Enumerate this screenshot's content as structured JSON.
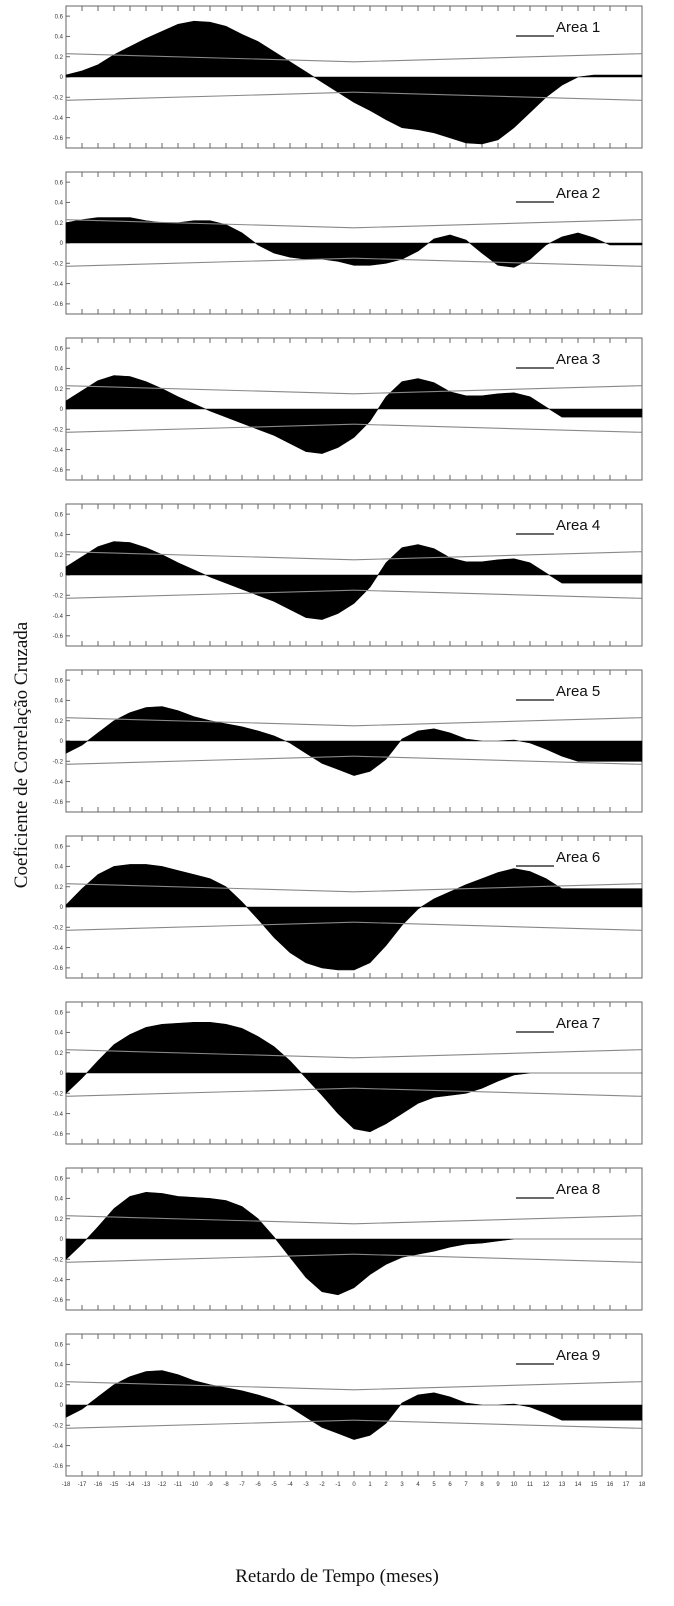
{
  "figure": {
    "ylabel": "Coeficiente de Correlação Cruzada",
    "xlabel": "Retardo de Tempo (meses)"
  },
  "chart_data": {
    "type": "area",
    "xlim": [
      -18,
      18
    ],
    "ylim": [
      -0.7,
      0.7
    ],
    "yticks": [
      0.6,
      0.4,
      0.2,
      0,
      -0.2,
      -0.4,
      -0.6
    ],
    "ytick_labels": [
      "0.6",
      "0.4",
      "0.2",
      "0",
      "-0.2",
      "-0.4",
      "-0.6"
    ],
    "xticks": [
      -18,
      -17,
      -16,
      -15,
      -14,
      -13,
      -12,
      -11,
      -10,
      -9,
      -8,
      -7,
      -6,
      -5,
      -4,
      -3,
      -2,
      -1,
      0,
      1,
      2,
      3,
      4,
      5,
      6,
      7,
      8,
      9,
      10,
      11,
      12,
      13,
      14,
      15,
      16,
      17,
      18
    ],
    "confidence_band": {
      "upper": [
        0.23,
        0.15
      ],
      "lower": [
        -0.23,
        -0.15
      ],
      "color": "#888888"
    },
    "fill_color": "#000000",
    "panels": [
      {
        "name": "Area 1",
        "y": [
          0.02,
          0.06,
          0.12,
          0.22,
          0.3,
          0.38,
          0.45,
          0.52,
          0.55,
          0.54,
          0.5,
          0.42,
          0.35,
          0.25,
          0.15,
          0.05,
          -0.05,
          -0.15,
          -0.25,
          -0.33,
          -0.42,
          -0.5,
          -0.52,
          -0.55,
          -0.6,
          -0.65,
          -0.66,
          -0.62,
          -0.5,
          -0.35,
          -0.2,
          -0.08,
          0.0,
          0.02,
          0.02,
          0.02,
          0.02
        ]
      },
      {
        "name": "Area 2",
        "y": [
          0.2,
          0.23,
          0.25,
          0.25,
          0.25,
          0.22,
          0.2,
          0.2,
          0.22,
          0.22,
          0.18,
          0.1,
          -0.02,
          -0.1,
          -0.14,
          -0.16,
          -0.16,
          -0.18,
          -0.22,
          -0.22,
          -0.2,
          -0.16,
          -0.08,
          0.04,
          0.08,
          0.03,
          -0.1,
          -0.22,
          -0.24,
          -0.16,
          -0.02,
          0.06,
          0.1,
          0.05,
          -0.02,
          -0.02,
          -0.02
        ]
      },
      {
        "name": "Area 3",
        "y": [
          0.08,
          0.18,
          0.28,
          0.33,
          0.32,
          0.27,
          0.2,
          0.12,
          0.05,
          -0.02,
          -0.08,
          -0.14,
          -0.2,
          -0.26,
          -0.34,
          -0.42,
          -0.44,
          -0.38,
          -0.28,
          -0.12,
          0.12,
          0.27,
          0.3,
          0.26,
          0.17,
          0.13,
          0.13,
          0.15,
          0.16,
          0.12,
          0.02,
          -0.08,
          -0.08,
          -0.08,
          -0.08,
          -0.08,
          -0.08
        ]
      },
      {
        "name": "Area 4",
        "y": [
          0.08,
          0.18,
          0.28,
          0.33,
          0.32,
          0.27,
          0.2,
          0.12,
          0.05,
          -0.02,
          -0.08,
          -0.14,
          -0.2,
          -0.26,
          -0.34,
          -0.42,
          -0.44,
          -0.38,
          -0.28,
          -0.12,
          0.12,
          0.27,
          0.3,
          0.26,
          0.17,
          0.13,
          0.13,
          0.15,
          0.16,
          0.12,
          0.02,
          -0.08,
          -0.08,
          -0.08,
          -0.08,
          -0.08,
          -0.08
        ]
      },
      {
        "name": "Area 5",
        "y": [
          -0.12,
          -0.04,
          0.08,
          0.2,
          0.28,
          0.33,
          0.34,
          0.3,
          0.24,
          0.2,
          0.17,
          0.14,
          0.1,
          0.05,
          -0.02,
          -0.12,
          -0.22,
          -0.28,
          -0.34,
          -0.3,
          -0.18,
          0.02,
          0.1,
          0.12,
          0.08,
          0.02,
          0.0,
          0.0,
          0.01,
          -0.02,
          -0.08,
          -0.15,
          -0.2,
          -0.2,
          -0.2,
          -0.2,
          -0.2
        ]
      },
      {
        "name": "Area 6",
        "y": [
          0.02,
          0.18,
          0.32,
          0.4,
          0.42,
          0.42,
          0.4,
          0.36,
          0.32,
          0.28,
          0.2,
          0.05,
          -0.12,
          -0.3,
          -0.45,
          -0.55,
          -0.6,
          -0.62,
          -0.62,
          -0.55,
          -0.38,
          -0.18,
          -0.02,
          0.08,
          0.15,
          0.22,
          0.28,
          0.34,
          0.38,
          0.35,
          0.28,
          0.18,
          0.18,
          0.18,
          0.18,
          0.18,
          0.18
        ]
      },
      {
        "name": "Area 7",
        "y": [
          -0.2,
          -0.05,
          0.12,
          0.28,
          0.38,
          0.45,
          0.48,
          0.49,
          0.5,
          0.5,
          0.48,
          0.44,
          0.36,
          0.26,
          0.12,
          -0.05,
          -0.22,
          -0.4,
          -0.55,
          -0.58,
          -0.5,
          -0.4,
          -0.3,
          -0.24,
          -0.22,
          -0.2,
          -0.15,
          -0.08,
          -0.02,
          0.0,
          0.0,
          0.0,
          0.0,
          0.0,
          0.0,
          0.0,
          0.0
        ]
      },
      {
        "name": "Area 8",
        "y": [
          -0.2,
          -0.05,
          0.12,
          0.3,
          0.42,
          0.46,
          0.45,
          0.42,
          0.41,
          0.4,
          0.38,
          0.32,
          0.2,
          0.02,
          -0.18,
          -0.38,
          -0.52,
          -0.55,
          -0.48,
          -0.35,
          -0.25,
          -0.18,
          -0.15,
          -0.12,
          -0.08,
          -0.05,
          -0.04,
          -0.02,
          0.0,
          0.0,
          0.0,
          0.0,
          0.0,
          0.0,
          0.0,
          0.0,
          0.0
        ]
      },
      {
        "name": "Area 9",
        "y": [
          -0.12,
          -0.04,
          0.08,
          0.2,
          0.28,
          0.33,
          0.34,
          0.3,
          0.24,
          0.2,
          0.17,
          0.14,
          0.1,
          0.05,
          -0.02,
          -0.12,
          -0.22,
          -0.28,
          -0.34,
          -0.3,
          -0.18,
          0.02,
          0.1,
          0.12,
          0.08,
          0.02,
          0.0,
          0.0,
          0.01,
          -0.02,
          -0.08,
          -0.15,
          -0.15,
          -0.15,
          -0.15,
          -0.15,
          -0.15
        ]
      }
    ]
  }
}
